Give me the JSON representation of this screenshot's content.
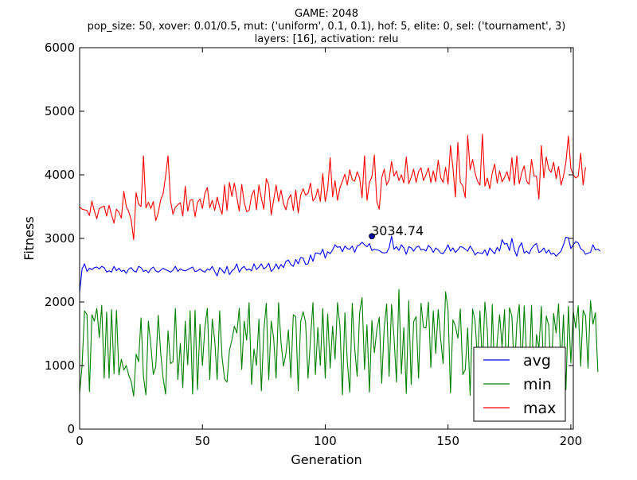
{
  "chart_data": {
    "type": "line",
    "title_lines": [
      "GAME: 2048",
      "pop_size: 50, xover: 0.01/0.5, mut: ('uniform', 0.1, 0.1), hof: 5, elite: 0, sel: ('tournament', 3)",
      "layers: [16], activation: relu"
    ],
    "xlabel": "Generation",
    "ylabel": "Fitness",
    "xlim": [
      0,
      201
    ],
    "ylim": [
      0,
      6000
    ],
    "xticks": [
      0,
      50,
      100,
      150,
      200
    ],
    "yticks": [
      0,
      1000,
      2000,
      3000,
      4000,
      5000,
      6000
    ],
    "grid": false,
    "legend_position": "lower-right",
    "annotation": {
      "x": 119,
      "y": 3034.74,
      "label": "3034.74"
    },
    "series": [
      {
        "name": "avg",
        "color": "#0000ff",
        "values": [
          2150,
          2520,
          2600,
          2480,
          2530,
          2510,
          2540,
          2550,
          2520,
          2560,
          2540,
          2470,
          2490,
          2470,
          2560,
          2490,
          2530,
          2480,
          2500,
          2450,
          2520,
          2540,
          2490,
          2470,
          2560,
          2540,
          2480,
          2500,
          2460,
          2520,
          2550,
          2490,
          2470,
          2500,
          2530,
          2510,
          2490,
          2470,
          2500,
          2560,
          2480,
          2520,
          2500,
          2490,
          2510,
          2530,
          2550,
          2480,
          2490,
          2520,
          2490,
          2470,
          2520,
          2500,
          2560,
          2480,
          2410,
          2540,
          2500,
          2450,
          2560,
          2430,
          2490,
          2520,
          2600,
          2470,
          2530,
          2560,
          2500,
          2520,
          2490,
          2600,
          2510,
          2550,
          2600,
          2520,
          2550,
          2610,
          2480,
          2520,
          2600,
          2520,
          2590,
          2540,
          2640,
          2660,
          2590,
          2560,
          2670,
          2600,
          2700,
          2690,
          2590,
          2600,
          2740,
          2640,
          2770,
          2770,
          2750,
          2830,
          2690,
          2790,
          2760,
          2820,
          2900,
          2860,
          2870,
          2790,
          2880,
          2840,
          2830,
          2880,
          2780,
          2880,
          2900,
          2940,
          2900,
          2870,
          2920,
          2810,
          2830,
          2820,
          2810,
          2780,
          2770,
          2780,
          2850,
          3034.74,
          2830,
          2870,
          2810,
          2900,
          2850,
          2750,
          2870,
          2850,
          2800,
          2860,
          2880,
          2820,
          2830,
          2800,
          2890,
          2850,
          2780,
          2850,
          2820,
          2770,
          2760,
          2820,
          2900,
          2800,
          2850,
          2780,
          2820,
          2870,
          2860,
          2830,
          2800,
          2880,
          2820,
          2740,
          2780,
          2770,
          2760,
          2820,
          2730,
          2850,
          2800,
          2760,
          2860,
          2800,
          2980,
          2910,
          2920,
          2810,
          3000,
          2820,
          2720,
          2870,
          2930,
          2770,
          2800,
          2760,
          2840,
          2890,
          2920,
          2780,
          2800,
          2850,
          2770,
          2820,
          2750,
          2770,
          2720,
          2760,
          2800,
          2900,
          3020,
          3010,
          2840,
          2900,
          2950,
          2930,
          2840,
          2810,
          2750,
          2770,
          2780,
          2900,
          2820,
          2830,
          2800
        ]
      },
      {
        "name": "min",
        "color": "#008000",
        "values": [
          560,
          1000,
          1860,
          1800,
          590,
          1800,
          1700,
          1900,
          1440,
          1950,
          800,
          1840,
          800,
          1880,
          870,
          1870,
          850,
          1100,
          930,
          1000,
          850,
          750,
          520,
          1180,
          1060,
          1750,
          820,
          540,
          1700,
          1320,
          860,
          980,
          1790,
          1200,
          800,
          550,
          1550,
          1030,
          1060,
          1900,
          780,
          1350,
          650,
          1700,
          1010,
          1860,
          550,
          1870,
          620,
          1650,
          1000,
          1600,
          1900,
          780,
          1730,
          1400,
          780,
          1860,
          1130,
          790,
          740,
          1240,
          1400,
          1620,
          1510,
          1900,
          940,
          1700,
          1400,
          1990,
          700,
          1260,
          1000,
          1730,
          600,
          1550,
          1980,
          780,
          1700,
          1430,
          800,
          1990,
          1360,
          990,
          1190,
          1560,
          810,
          1800,
          1770,
          600,
          1690,
          1850,
          1680,
          800,
          1420,
          1990,
          860,
          1600,
          1000,
          1900,
          800,
          1810,
          960,
          1620,
          1100,
          1990,
          1610,
          540,
          1830,
          1050,
          580,
          1980,
          1270,
          830,
          1830,
          2070,
          940,
          1640,
          580,
          1710,
          1200,
          1560,
          1760,
          720,
          1590,
          1970,
          830,
          1960,
          1450,
          740,
          2200,
          870,
          1600,
          560,
          2020,
          700,
          1690,
          1770,
          800,
          1980,
          1600,
          1590,
          2000,
          970,
          1860,
          1190,
          1880,
          1420,
          1030,
          2160,
          1880,
          570,
          1720,
          1620,
          1430,
          1890,
          860,
          930,
          1590,
          530,
          1890,
          1700,
          1090,
          1860,
          990,
          2000,
          1550,
          480,
          1960,
          820,
          1360,
          1800,
          1290,
          1880,
          600,
          1910,
          1780,
          860,
          1660,
          1960,
          850,
          1940,
          1160,
          870,
          1950,
          600,
          1490,
          1270,
          1930,
          780,
          1780,
          1630,
          810,
          1820,
          1510,
          1970,
          940,
          1800,
          620,
          1930,
          1040,
          1850,
          1590,
          1940,
          990,
          1870,
          1780,
          960,
          2020,
          1650,
          1830,
          900
        ]
      },
      {
        "name": "max",
        "color": "#ff0000",
        "values": [
          3500,
          3460,
          3450,
          3440,
          3360,
          3590,
          3430,
          3310,
          3470,
          3490,
          3510,
          3350,
          3520,
          3370,
          3240,
          3460,
          3410,
          3320,
          3740,
          3500,
          3420,
          3290,
          2980,
          3720,
          3540,
          3500,
          4300,
          3480,
          3570,
          3470,
          3580,
          3280,
          3400,
          3610,
          3700,
          3980,
          4300,
          3600,
          3380,
          3490,
          3530,
          3560,
          3350,
          3820,
          3430,
          3600,
          3610,
          3340,
          3570,
          3620,
          3470,
          3710,
          3800,
          3480,
          3600,
          3440,
          3650,
          3490,
          3380,
          3840,
          3440,
          3880,
          3660,
          3870,
          3650,
          3430,
          3850,
          3570,
          3420,
          3440,
          3670,
          3760,
          3450,
          3840,
          3630,
          3460,
          3940,
          3840,
          3370,
          3600,
          3840,
          3580,
          3760,
          3550,
          3450,
          3620,
          3690,
          3440,
          3760,
          3400,
          3680,
          3780,
          3680,
          3710,
          3870,
          3590,
          3640,
          3780,
          3580,
          4020,
          3580,
          3780,
          4270,
          3650,
          3910,
          3600,
          3800,
          3900,
          4010,
          3840,
          4080,
          3920,
          3900,
          4050,
          3950,
          3640,
          4300,
          3600,
          3880,
          3970,
          4310,
          3580,
          3460,
          3950,
          4090,
          3840,
          3920,
          4210,
          3980,
          4060,
          3910,
          4000,
          3870,
          4280,
          3860,
          3960,
          4090,
          3880,
          4050,
          4110,
          3910,
          4000,
          4110,
          3880,
          4060,
          3890,
          4230,
          3960,
          3880,
          4120,
          3850,
          4460,
          4110,
          3650,
          4510,
          3880,
          3830,
          3640,
          4620,
          4080,
          4240,
          4030,
          3900,
          3840,
          4640,
          3820,
          3950,
          3780,
          4030,
          4170,
          3870,
          4060,
          3890,
          3960,
          4050,
          3900,
          4270,
          3840,
          4300,
          3860,
          4030,
          4140,
          3900,
          3850,
          4240,
          3980,
          3980,
          3620,
          4460,
          3950,
          4280,
          4090,
          4040,
          4200,
          3940,
          4130,
          3840,
          3980,
          4200,
          4610,
          4100,
          4000,
          3950,
          3980,
          4340,
          3840,
          4120
        ]
      }
    ]
  }
}
